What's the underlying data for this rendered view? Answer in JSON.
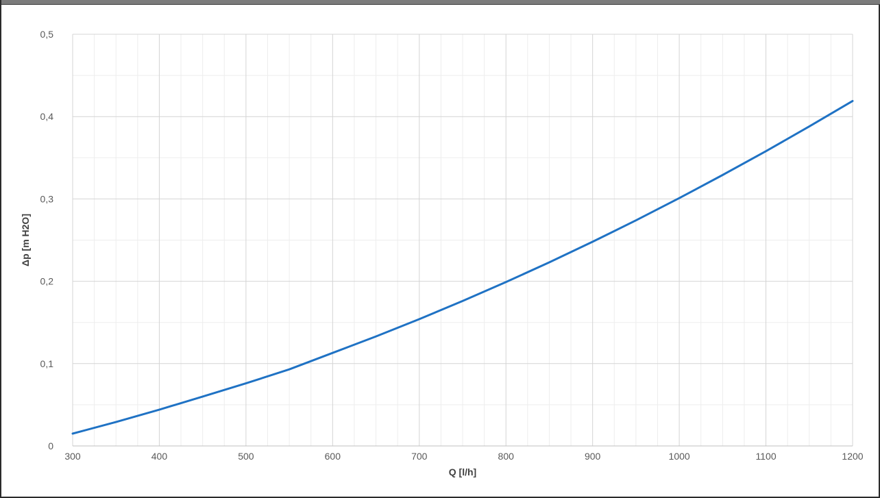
{
  "window": {
    "title": ""
  },
  "chart_data": {
    "type": "line",
    "xlabel": "Q [l/h]",
    "ylabel": "Δp [m H2O]",
    "xlim": [
      300,
      1200
    ],
    "ylim": [
      0,
      0.5
    ],
    "x_ticks": [
      300,
      400,
      500,
      600,
      700,
      800,
      900,
      1000,
      1100,
      1200
    ],
    "x_tick_labels": [
      "300",
      "400",
      "500",
      "600",
      "700",
      "800",
      "900",
      "1000",
      "1100",
      "1200"
    ],
    "y_ticks": [
      0,
      0.1,
      0.2,
      0.3,
      0.4,
      0.5
    ],
    "y_tick_labels": [
      "0",
      "0,1",
      "0,2",
      "0,3",
      "0,4",
      "0,5"
    ],
    "grid": true,
    "legend": "none",
    "series": [
      {
        "color": "#1f72c4",
        "x": [
          300,
          350,
          400,
          450,
          500,
          550,
          600,
          650,
          700,
          750,
          800,
          850,
          900,
          950,
          1000,
          1050,
          1100,
          1150,
          1200
        ],
        "y": [
          0.015,
          0.029,
          0.044,
          0.06,
          0.076,
          0.093,
          0.113,
          0.133,
          0.154,
          0.176,
          0.199,
          0.223,
          0.248,
          0.274,
          0.301,
          0.329,
          0.358,
          0.388,
          0.419
        ]
      }
    ]
  }
}
